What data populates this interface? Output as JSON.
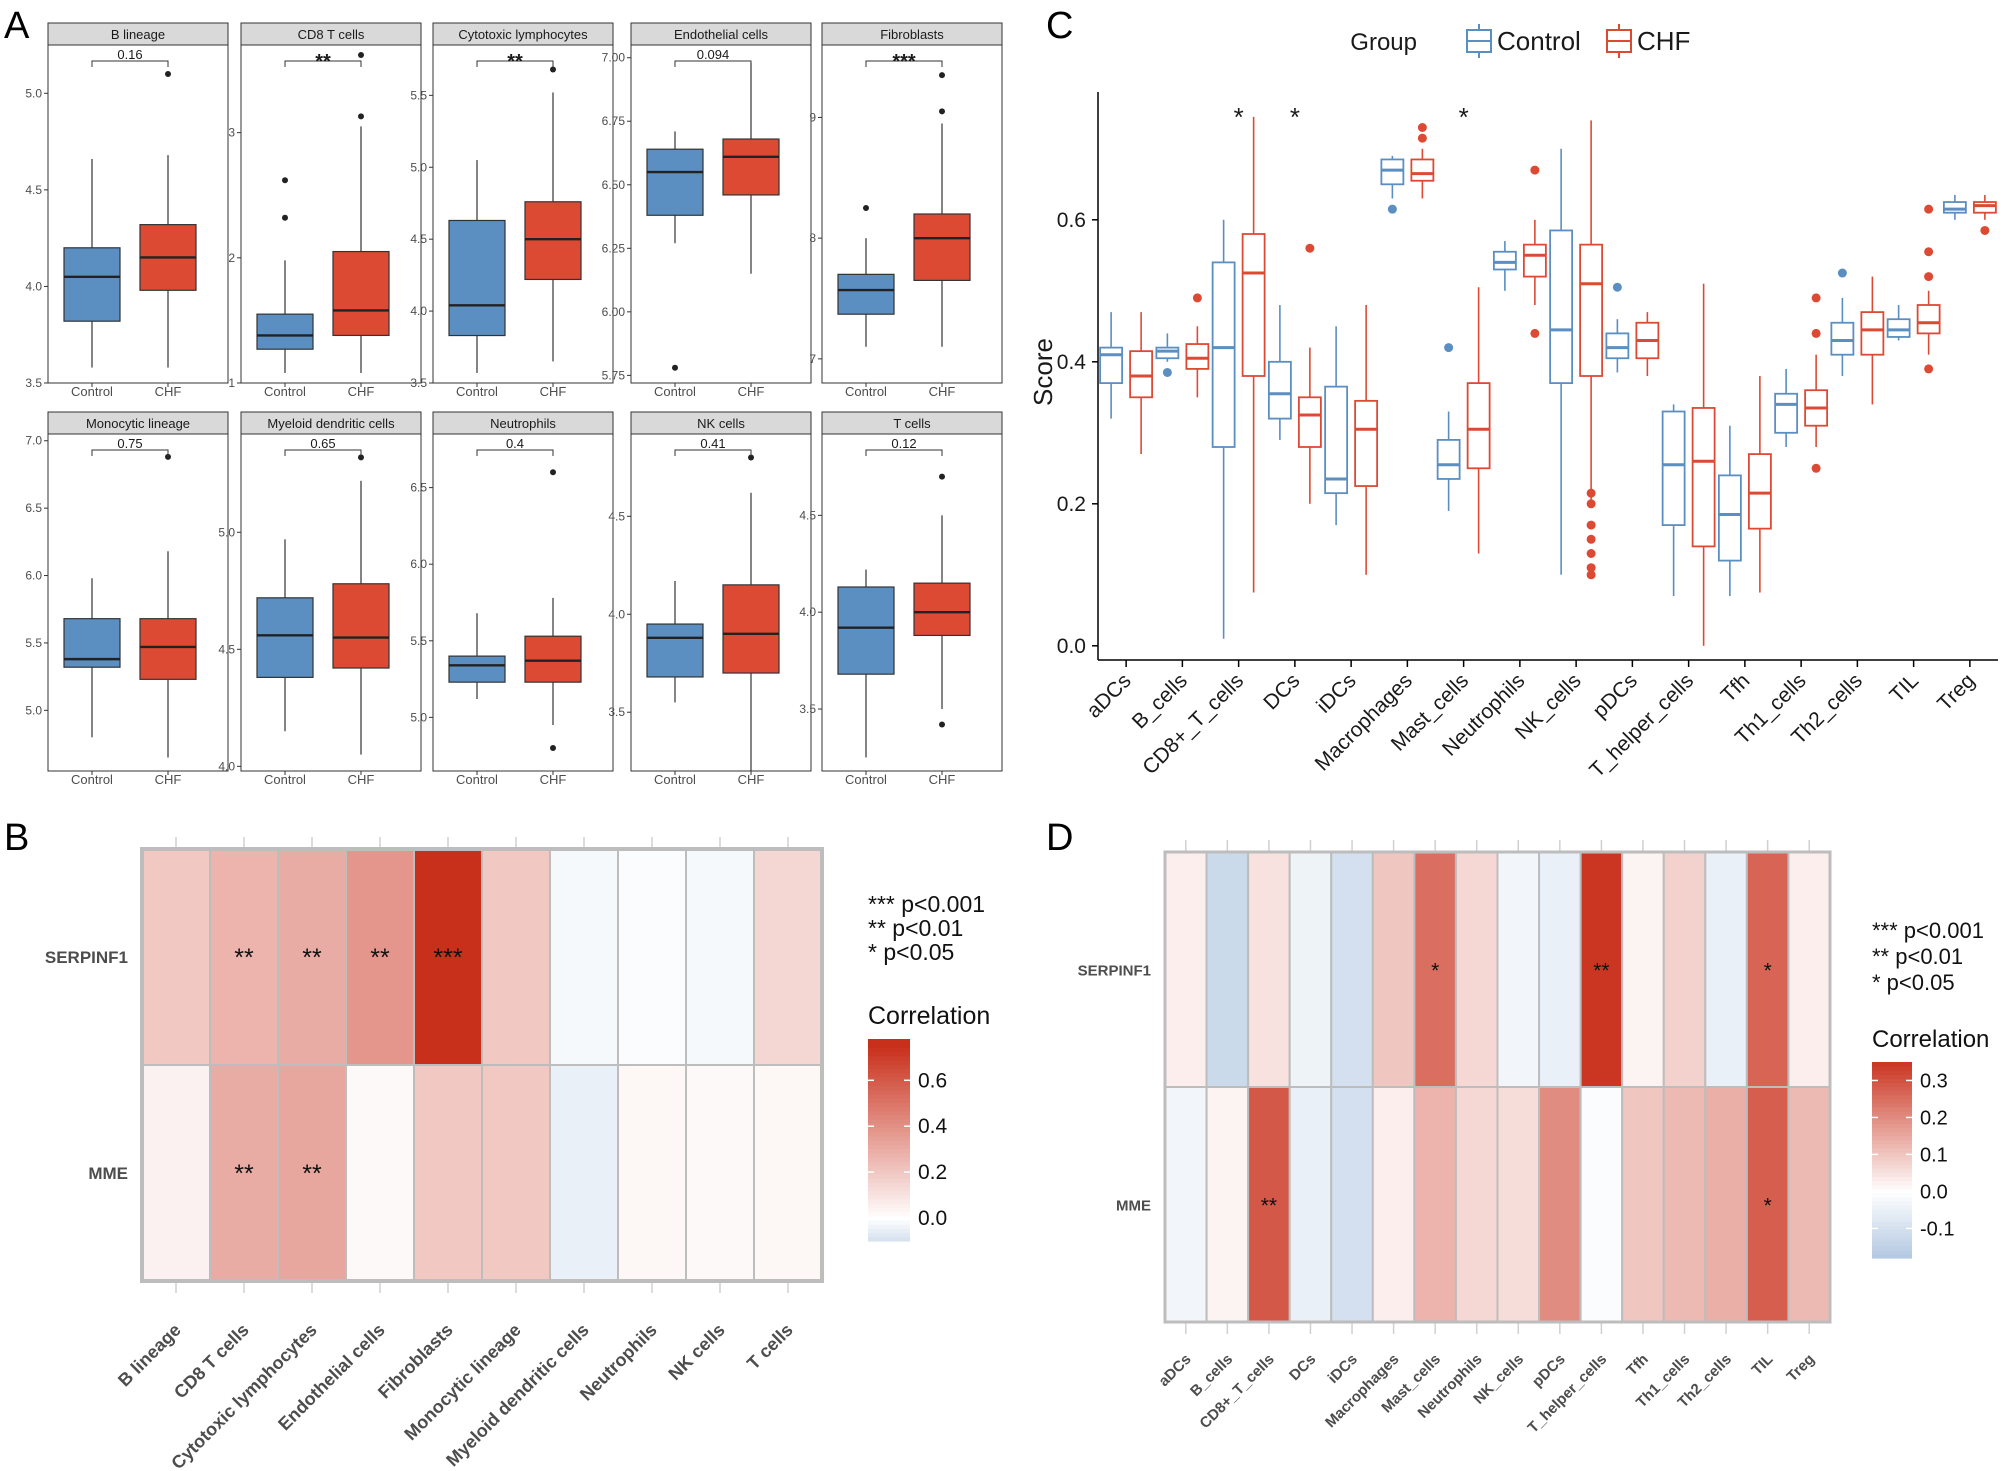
{
  "colors": {
    "control": "#5b8ec1",
    "chf": "#dc4a34",
    "control_line": "#5b8ec1",
    "chf_line": "#dc4a34",
    "strip_fill": "#d9d9d9",
    "panel_border": "#333333",
    "grid": "#ebebeb",
    "heat_low": "#a9c1de",
    "heat_mid": "#ffffff",
    "heat_high": "#c9301c",
    "heat_border": "#bdbdbd"
  },
  "panels": {
    "A": "A",
    "B": "B",
    "C": "C",
    "D": "D"
  },
  "chart_data": [
    {
      "id": "A",
      "type": "boxplot-facets",
      "groups": [
        "Control",
        "CHF"
      ],
      "facets": [
        {
          "title": "B lineage",
          "sig": "0.16",
          "ticks": [
            "3.5",
            "4.0",
            "4.5",
            "5.0"
          ],
          "tick_values": [
            3.5,
            4.0,
            4.5,
            5.0
          ],
          "ylim": [
            3.5,
            5.25
          ],
          "boxes": [
            {
              "lw": 3.58,
              "q1": 3.82,
              "med": 4.05,
              "q3": 4.2,
              "uw": 4.66,
              "out": []
            },
            {
              "lw": 3.58,
              "q1": 3.98,
              "med": 4.15,
              "q3": 4.32,
              "uw": 4.68,
              "out": [
                5.1
              ]
            }
          ]
        },
        {
          "title": "CD8 T cells",
          "sig": "**",
          "ticks": [
            "1",
            "2",
            "3"
          ],
          "tick_values": [
            1,
            2,
            3
          ],
          "ylim": [
            1,
            3.7
          ],
          "boxes": [
            {
              "lw": 1.08,
              "q1": 1.27,
              "med": 1.38,
              "q3": 1.55,
              "uw": 1.98,
              "out": [
                2.32,
                2.62
              ]
            },
            {
              "lw": 1.08,
              "q1": 1.38,
              "med": 1.58,
              "q3": 2.05,
              "uw": 3.05,
              "out": [
                3.13,
                3.62
              ]
            }
          ]
        },
        {
          "title": "Cytotoxic lymphocytes",
          "sig": "**",
          "ticks": [
            "3.5",
            "4.0",
            "4.5",
            "5.0",
            "5.5"
          ],
          "tick_values": [
            3.5,
            4.0,
            4.5,
            5.0,
            5.5
          ],
          "ylim": [
            3.5,
            5.85
          ],
          "boxes": [
            {
              "lw": 3.57,
              "q1": 3.83,
              "med": 4.04,
              "q3": 4.63,
              "uw": 5.05,
              "out": []
            },
            {
              "lw": 3.65,
              "q1": 4.22,
              "med": 4.5,
              "q3": 4.76,
              "uw": 5.52,
              "out": [
                5.68
              ]
            }
          ]
        },
        {
          "title": "Endothelial cells",
          "sig": "0.094",
          "ticks": [
            "5.75",
            "6.00",
            "6.25",
            "6.50",
            "6.75",
            "7.00"
          ],
          "tick_values": [
            5.75,
            6.0,
            6.25,
            6.5,
            6.75,
            7.0
          ],
          "ylim": [
            5.72,
            7.05
          ],
          "boxes": [
            {
              "lw": 6.27,
              "q1": 6.38,
              "med": 6.55,
              "q3": 6.64,
              "uw": 6.71,
              "out": [
                5.78
              ]
            },
            {
              "lw": 6.15,
              "q1": 6.46,
              "med": 6.61,
              "q3": 6.68,
              "uw": 6.98,
              "out": []
            }
          ]
        },
        {
          "title": "Fibroblasts",
          "sig": "***",
          "ticks": [
            "7",
            "8",
            "9"
          ],
          "tick_values": [
            7,
            8,
            9
          ],
          "ylim": [
            6.8,
            9.6
          ],
          "boxes": [
            {
              "lw": 7.1,
              "q1": 7.37,
              "med": 7.57,
              "q3": 7.7,
              "uw": 8.0,
              "out": [
                8.25
              ]
            },
            {
              "lw": 7.1,
              "q1": 7.65,
              "med": 8.0,
              "q3": 8.2,
              "uw": 8.95,
              "out": [
                9.05,
                9.35
              ]
            }
          ]
        },
        {
          "title": "Monocytic lineage",
          "sig": "0.75",
          "ticks": [
            "5.0",
            "5.5",
            "6.0",
            "6.5",
            "7.0"
          ],
          "tick_values": [
            5.0,
            5.5,
            6.0,
            6.5,
            7.0
          ],
          "ylim": [
            4.55,
            7.05
          ],
          "boxes": [
            {
              "lw": 4.8,
              "q1": 5.32,
              "med": 5.38,
              "q3": 5.68,
              "uw": 5.98,
              "out": []
            },
            {
              "lw": 4.65,
              "q1": 5.23,
              "med": 5.47,
              "q3": 5.68,
              "uw": 6.18,
              "out": [
                6.88
              ]
            }
          ]
        },
        {
          "title": "Myeloid dendritic cells",
          "sig": "0.65",
          "ticks": [
            "4.0",
            "4.5",
            "5.0"
          ],
          "tick_values": [
            4.0,
            4.5,
            5.0
          ],
          "ylim": [
            3.98,
            5.42
          ],
          "boxes": [
            {
              "lw": 4.15,
              "q1": 4.38,
              "med": 4.56,
              "q3": 4.72,
              "uw": 4.97,
              "out": []
            },
            {
              "lw": 4.05,
              "q1": 4.42,
              "med": 4.55,
              "q3": 4.78,
              "uw": 5.22,
              "out": [
                5.32
              ]
            }
          ]
        },
        {
          "title": "Neutrophils",
          "sig": "0.4",
          "ticks": [
            "5.0",
            "5.5",
            "6.0",
            "6.5"
          ],
          "tick_values": [
            5.0,
            5.5,
            6.0,
            6.5
          ],
          "ylim": [
            4.65,
            6.85
          ],
          "boxes": [
            {
              "lw": 5.12,
              "q1": 5.23,
              "med": 5.34,
              "q3": 5.4,
              "uw": 5.68,
              "out": []
            },
            {
              "lw": 4.95,
              "q1": 5.23,
              "med": 5.37,
              "q3": 5.53,
              "uw": 5.78,
              "out": [
                4.8,
                6.6
              ]
            }
          ]
        },
        {
          "title": "NK cells",
          "sig": "0.41",
          "ticks": [
            "3.5",
            "4.0",
            "4.5"
          ],
          "tick_values": [
            3.5,
            4.0,
            4.5
          ],
          "ylim": [
            3.2,
            4.92
          ],
          "boxes": [
            {
              "lw": 3.55,
              "q1": 3.68,
              "med": 3.88,
              "q3": 3.95,
              "uw": 4.17,
              "out": []
            },
            {
              "lw": 3.2,
              "q1": 3.7,
              "med": 3.9,
              "q3": 4.15,
              "uw": 4.62,
              "out": [
                4.8
              ]
            }
          ]
        },
        {
          "title": "T cells",
          "sig": "0.12",
          "ticks": [
            "3.5",
            "4.0",
            "4.5"
          ],
          "tick_values": [
            3.5,
            4.0,
            4.5
          ],
          "ylim": [
            3.18,
            4.92
          ],
          "boxes": [
            {
              "lw": 3.25,
              "q1": 3.68,
              "med": 3.92,
              "q3": 4.13,
              "uw": 4.22,
              "out": []
            },
            {
              "lw": 3.5,
              "q1": 3.88,
              "med": 4.0,
              "q3": 4.15,
              "uw": 4.5,
              "out": [
                3.42,
                4.7
              ]
            }
          ]
        }
      ]
    },
    {
      "id": "C",
      "type": "boxplot",
      "legend_title": "Group",
      "groups": [
        "Control",
        "CHF"
      ],
      "ylabel": "Score",
      "ylim": [
        -0.02,
        0.78
      ],
      "y_ticks": [
        "0.0",
        "0.2",
        "0.4",
        "0.6"
      ],
      "y_tick_values": [
        0.0,
        0.2,
        0.4,
        0.6
      ],
      "categories": [
        "aDCs",
        "B_cells",
        "CD8+_T_cells",
        "DCs",
        "iDCs",
        "Macrophages",
        "Mast_cells",
        "Neutrophils",
        "NK_cells",
        "pDCs",
        "T_helper_cells",
        "Tfh",
        "Th1_cells",
        "Th2_cells",
        "TIL",
        "Treg"
      ],
      "sig": [
        "",
        "",
        "*",
        "*",
        "",
        "",
        "*",
        "",
        "",
        "",
        "",
        "",
        "",
        "",
        "",
        ""
      ],
      "control": [
        {
          "lw": 0.32,
          "q1": 0.37,
          "med": 0.41,
          "q3": 0.42,
          "uw": 0.47,
          "out": []
        },
        {
          "lw": 0.4,
          "q1": 0.405,
          "med": 0.415,
          "q3": 0.42,
          "uw": 0.44,
          "out": [
            0.385
          ]
        },
        {
          "lw": 0.01,
          "q1": 0.28,
          "med": 0.42,
          "q3": 0.54,
          "uw": 0.6,
          "out": []
        },
        {
          "lw": 0.29,
          "q1": 0.32,
          "med": 0.355,
          "q3": 0.4,
          "uw": 0.48,
          "out": []
        },
        {
          "lw": 0.17,
          "q1": 0.215,
          "med": 0.235,
          "q3": 0.365,
          "uw": 0.45,
          "out": []
        },
        {
          "lw": 0.63,
          "q1": 0.65,
          "med": 0.67,
          "q3": 0.685,
          "uw": 0.69,
          "out": [
            0.615
          ]
        },
        {
          "lw": 0.19,
          "q1": 0.235,
          "med": 0.255,
          "q3": 0.29,
          "uw": 0.33,
          "out": [
            0.42
          ]
        },
        {
          "lw": 0.5,
          "q1": 0.53,
          "med": 0.54,
          "q3": 0.555,
          "uw": 0.57,
          "out": []
        },
        {
          "lw": 0.1,
          "q1": 0.37,
          "med": 0.445,
          "q3": 0.585,
          "uw": 0.7,
          "out": []
        },
        {
          "lw": 0.385,
          "q1": 0.405,
          "med": 0.42,
          "q3": 0.44,
          "uw": 0.46,
          "out": [
            0.505
          ]
        },
        {
          "lw": 0.07,
          "q1": 0.17,
          "med": 0.255,
          "q3": 0.33,
          "uw": 0.34,
          "out": []
        },
        {
          "lw": 0.07,
          "q1": 0.12,
          "med": 0.185,
          "q3": 0.24,
          "uw": 0.31,
          "out": []
        },
        {
          "lw": 0.28,
          "q1": 0.3,
          "med": 0.34,
          "q3": 0.355,
          "uw": 0.39,
          "out": []
        },
        {
          "lw": 0.38,
          "q1": 0.41,
          "med": 0.43,
          "q3": 0.455,
          "uw": 0.49,
          "out": [
            0.525
          ]
        },
        {
          "lw": 0.43,
          "q1": 0.435,
          "med": 0.445,
          "q3": 0.46,
          "uw": 0.48,
          "out": []
        },
        {
          "lw": 0.6,
          "q1": 0.61,
          "med": 0.615,
          "q3": 0.625,
          "uw": 0.635,
          "out": []
        }
      ],
      "chf": [
        {
          "lw": 0.27,
          "q1": 0.35,
          "med": 0.38,
          "q3": 0.415,
          "uw": 0.47,
          "out": []
        },
        {
          "lw": 0.35,
          "q1": 0.39,
          "med": 0.405,
          "q3": 0.425,
          "uw": 0.45,
          "out": [
            0.49
          ]
        },
        {
          "lw": 0.075,
          "q1": 0.38,
          "med": 0.525,
          "q3": 0.58,
          "uw": 0.745,
          "out": []
        },
        {
          "lw": 0.2,
          "q1": 0.28,
          "med": 0.325,
          "q3": 0.35,
          "uw": 0.42,
          "out": [
            0.56
          ]
        },
        {
          "lw": 0.1,
          "q1": 0.225,
          "med": 0.305,
          "q3": 0.345,
          "uw": 0.48,
          "out": []
        },
        {
          "lw": 0.63,
          "q1": 0.655,
          "med": 0.665,
          "q3": 0.685,
          "uw": 0.7,
          "out": [
            0.715,
            0.73
          ]
        },
        {
          "lw": 0.13,
          "q1": 0.25,
          "med": 0.305,
          "q3": 0.37,
          "uw": 0.505,
          "out": []
        },
        {
          "lw": 0.48,
          "q1": 0.52,
          "med": 0.55,
          "q3": 0.565,
          "uw": 0.6,
          "out": [
            0.44,
            0.67
          ]
        },
        {
          "lw": 0.2,
          "q1": 0.38,
          "med": 0.51,
          "q3": 0.565,
          "uw": 0.74,
          "out": [
            0.1,
            0.11,
            0.13,
            0.15,
            0.17,
            0.2,
            0.215
          ]
        },
        {
          "lw": 0.38,
          "q1": 0.405,
          "med": 0.43,
          "q3": 0.455,
          "uw": 0.47,
          "out": []
        },
        {
          "lw": 0.0,
          "q1": 0.14,
          "med": 0.26,
          "q3": 0.335,
          "uw": 0.51,
          "out": []
        },
        {
          "lw": 0.075,
          "q1": 0.165,
          "med": 0.215,
          "q3": 0.27,
          "uw": 0.38,
          "out": []
        },
        {
          "lw": 0.28,
          "q1": 0.31,
          "med": 0.335,
          "q3": 0.36,
          "uw": 0.41,
          "out": [
            0.25,
            0.44,
            0.49
          ]
        },
        {
          "lw": 0.34,
          "q1": 0.41,
          "med": 0.445,
          "q3": 0.47,
          "uw": 0.52,
          "out": []
        },
        {
          "lw": 0.41,
          "q1": 0.44,
          "med": 0.455,
          "q3": 0.48,
          "uw": 0.5,
          "out": [
            0.39,
            0.52,
            0.555,
            0.615
          ]
        },
        {
          "lw": 0.6,
          "q1": 0.61,
          "med": 0.62,
          "q3": 0.625,
          "uw": 0.635,
          "out": [
            0.585
          ]
        }
      ]
    },
    {
      "id": "B",
      "type": "heatmap",
      "rows": [
        "SERPINF1",
        "MME"
      ],
      "columns": [
        "B lineage",
        "CD8 T cells",
        "Cytotoxic lymphocytes",
        "Endothelial cells",
        "Fibroblasts",
        "Monocytic lineage",
        "Myeloid dendritic cells",
        "Neutrophils",
        "NK cells",
        "T cells"
      ],
      "values": [
        [
          0.2,
          0.27,
          0.3,
          0.38,
          0.75,
          0.2,
          -0.02,
          -0.01,
          -0.02,
          0.15
        ],
        [
          0.05,
          0.3,
          0.32,
          0.02,
          0.2,
          0.2,
          -0.05,
          0.03,
          0.02,
          0.03
        ]
      ],
      "stars": [
        [
          "",
          "**",
          "**",
          "**",
          "***",
          "",
          "",
          "",
          "",
          ""
        ],
        [
          "",
          "**",
          "**",
          "",
          "",
          "",
          "",
          "",
          "",
          ""
        ]
      ],
      "legend_title": "Correlation",
      "legend_ticks": [
        "0.6",
        "0.4",
        "0.2",
        "0.0"
      ],
      "legend_tick_values": [
        0.6,
        0.4,
        0.2,
        0.0
      ],
      "legend_range": [
        -0.1,
        0.78
      ],
      "sig_key": [
        "*** p<0.001",
        "** p<0.01",
        "* p<0.05"
      ]
    },
    {
      "id": "D",
      "type": "heatmap",
      "rows": [
        "SERPINF1",
        "MME"
      ],
      "columns": [
        "aDCs",
        "B_cells",
        "CD8+_T_cells",
        "DCs",
        "iDCs",
        "Macrophages",
        "Mast_cells",
        "Neutrophils",
        "NK_cells",
        "pDCs",
        "T_helper_cells",
        "Tfh",
        "Th1_cells",
        "Th2_cells",
        "TIL",
        "Treg"
      ],
      "values": [
        [
          0.03,
          -0.12,
          0.05,
          -0.04,
          -0.1,
          0.1,
          0.25,
          0.07,
          -0.03,
          -0.05,
          0.35,
          0.02,
          0.08,
          -0.05,
          0.27,
          0.03
        ],
        [
          -0.03,
          0.02,
          0.29,
          -0.05,
          -0.1,
          0.03,
          0.13,
          0.07,
          0.06,
          0.2,
          -0.01,
          0.1,
          0.12,
          0.14,
          0.28,
          0.12
        ]
      ],
      "stars": [
        [
          "",
          "",
          "",
          "",
          "",
          "",
          "*",
          "",
          "",
          "",
          "**",
          "",
          "",
          "",
          "*",
          ""
        ],
        [
          "",
          "",
          "**",
          "",
          "",
          "",
          "",
          "",
          "",
          "",
          "",
          "",
          "",
          "",
          "*",
          ""
        ]
      ],
      "legend_title": "Correlation",
      "legend_ticks": [
        "0.3",
        "0.2",
        "0.1",
        "0.0",
        "-0.1"
      ],
      "legend_tick_values": [
        0.3,
        0.2,
        0.1,
        0.0,
        -0.1
      ],
      "legend_range": [
        -0.18,
        0.35
      ],
      "sig_key": [
        "*** p<0.001",
        "** p<0.01",
        "* p<0.05"
      ]
    }
  ]
}
